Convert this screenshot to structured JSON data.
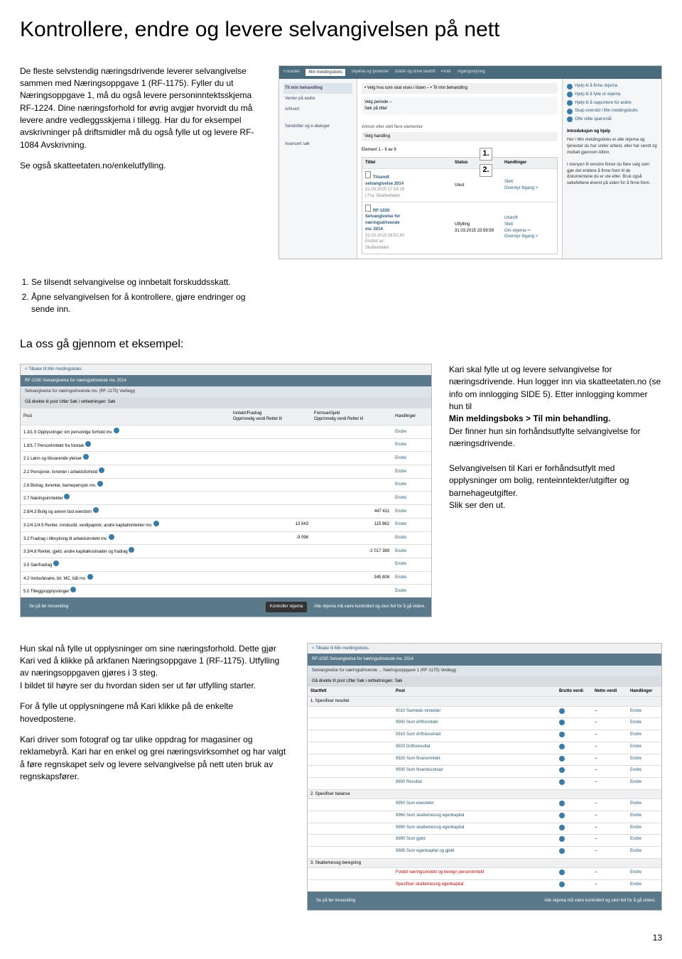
{
  "title": "Kontrollere, endre og levere selvangivelsen på nett",
  "intro": {
    "p1": "De fleste selvstendig næringsdrivende leverer selvangivelse sammen med Næringsoppgave 1 (RF-1175). Fyller du ut Næringsoppgave 1, må du også levere personinntektsskjema RF-1224. Dine næringsforhold for øvrig avgjør hvorvidt du må levere andre vedleggsskjema i tillegg. Har du for eksempel avskrivninger på driftsmidler må du også fylle ut og levere RF-1084 Avskrivning.",
    "p2": "Se også skatteetaten.no/enkelutfylling."
  },
  "steps": {
    "s1": "Se tilsendt selvangivelse og innbetalt forskuddsskatt.",
    "s2": "Åpne selvangivelsen for å kontrollere, gjøre endringer og sende inn."
  },
  "shot1": {
    "tabs": [
      "Forsiden",
      "Min meldingsboks",
      "Skjema og tjenester",
      "Starte og drive bedrift",
      "Profil",
      "Tilgangsstyring"
    ],
    "left": {
      "hdr": "Til min behandling",
      "items": [
        "Venter på andre",
        "Arkivert",
        "",
        "Søndotter og e-dialoger",
        "",
        "Avansert søk"
      ]
    },
    "midbar": "• Velg hva som skal vises i listen –  • Til min behandling",
    "mid_items": [
      "Velg periode –",
      "Søk på tittel"
    ],
    "mid_sec": "Arkivér eller slett flere elementer",
    "mid_sec2": "Velg handling",
    "list_hdr": "Element 1 - 9 av 9",
    "cols": [
      "Tittel",
      "Status",
      "Handlinger"
    ],
    "item1": {
      "title": "Tilsendt selvangivelse 2014",
      "sub": "31.03.2015 17:33:19 | Fra: Skatteetaten",
      "status": "Ulest",
      "action": "Slett\nOverstyr tilgang >"
    },
    "item2": {
      "title": "RF-1030 Selvangivelse for næringsdrivende mv. 2014",
      "sub": "31.03.2015 18:51:40 Endret av: Skatteetaten",
      "status": "Utfylling\n31.03.2015 23:59:59",
      "action": "Utskrift\nSlett\nOm skjema ⇨\nOverstyr tilgang >"
    },
    "help": [
      "Hjelp til å finne skjema",
      "Hjelp til å fylle ut skjema",
      "Hjelp til å rapportere for andre",
      "Skap oversikt i Min meldingsboks",
      "Ofte stilte spørsmål"
    ],
    "help_title": "Introduksjon og hjelp",
    "help_text": "Her i Min meldingsboks er alle skjema og tjenester du har under arbeid, eller har sendt og mottatt gjennom Altinn.\n\nI menyen til venstre finner du flere valg som gjør det enklere å finne frem til de dokumentene du er ute etter. Bruk også søkefeltene øverst på siden for å finne frem."
  },
  "example_hdr": "La oss gå gjennom et eksempel:",
  "shot2": {
    "back": "< Tilbake til Min meldingsboks",
    "title": "RF-1030 Selvangivelse for næringsdrivende mv. 2014",
    "tabs": "Selvangivelse for næringsdrivende mv. (RF-1175)  Vedlegg",
    "search": "Gå direkte til post            Utfør   Søk i rettledningen:            Søk",
    "cols": [
      "Post",
      "Inntekt/Fradrag\nOpprinnelig verdi   Rettet til",
      "Formue/Gjeld\nOpprinnelig verdi   Rettet til",
      "Handlinger"
    ],
    "rows": [
      {
        "p": "1.3/1.5 Opplysninger om personlige forhold mv.",
        "a": "Endre"
      },
      {
        "p": "1.6/1.7 Personinntekt fra foretak",
        "a": "Endre"
      },
      {
        "p": "2.1 Lønn og tilsvarende ytelser",
        "a": "Endre"
      },
      {
        "p": "2.2 Pensjoner, livrenter i arbeidsforhold",
        "a": "Endre"
      },
      {
        "p": "2.6 Bidrag, livrenter, barnepensjon mv.",
        "a": "Endre"
      },
      {
        "p": "2.7 Næringsinntekter",
        "a": "Endre"
      },
      {
        "p": "2.8/4.3 Bolig og annen fast eiendom",
        "v2": "447 411",
        "a": "Endre"
      },
      {
        "p": "3.1/4.1/4.5 Renter, innskudd, verdipapirer, andre kapitalinntekter mv.",
        "v1": "13 543",
        "v2": "115 862",
        "a": "Endre"
      },
      {
        "p": "3.2 Fradrag i tilknytning til arbeidsinntekt mv.",
        "v1": "-9 096",
        "a": "Endre"
      },
      {
        "p": "3.3/4.8 Renter, gjeld, andre kapitalkostnader og fradrag",
        "v2": "-2 017 389",
        "a": "Endre"
      },
      {
        "p": "3.5 Særfradrag",
        "a": "Endre"
      },
      {
        "p": "4.2 Innbo/løsøre, bil, MC, båt mv.",
        "v2": "345 808",
        "a": "Endre"
      },
      {
        "p": "5.0 Tilleggsopplysninger",
        "a": "Endre"
      }
    ],
    "btn1": "Se på før innsending",
    "btn2": "Kontroller skjema",
    "foot": "Alle skjema må være kontrollert og uten feil for å gå videre."
  },
  "example_text": {
    "p1a": "Kari skal fylle ut og levere selvangivelse for næringsdrivende. Hun logger inn via skatteetaten.no (se info om innlogging SIDE 5). Etter innlogging kommer hun til ",
    "p1b": "Min meldingsboks > Til min behandling.",
    "p1c": "Der finner hun sin forhåndsutfylte selvangivelse for næringsdrivende.",
    "p2": "Selvangivelsen til Kari er forhåndsutfylt med opplysninger om bolig, renteinntekter/utgifter og barnehageutgifter.",
    "p3": "Slik ser den ut."
  },
  "bottom": {
    "p1": "Hun skal nå fylle ut opplysninger om sine næringsforhold. Dette gjør Kari ved å klikke på arkfanen Næringsoppgave 1 (RF-1175). Utfylling av næringsoppgaven gjøres i 3 steg.",
    "p2": "I bildet til høyre ser du hvordan siden ser ut før utfylling starter.",
    "p3": "For å fylle ut opplysningene må Kari klikke på de enkelte hovedpostene.",
    "p4": "Kari driver som fotograf og tar ulike oppdrag for magasiner og reklamebyrå. Kari har en enkel og grei næringsvirksomhet og har valgt å føre regnskapet selv og levere selvangivelse på nett uten bruk av regnskapsfører."
  },
  "shot3": {
    "back": "< Tilbake til Min meldingsboks",
    "title": "RF-1030 Selvangivelse for næringsdrivende mv. 2014",
    "tabs": "Selvangivelse for næringsdrivende ...  Næringsoppgave 1 (RF-1175)  Vedlegg",
    "search": "Gå direkte til post            Utfør   Søk i rettledningen:            Søk",
    "cols": [
      "Startfelt",
      "Post",
      "Brutto verdi",
      "Netto verdi",
      "Handlinger"
    ],
    "group1": "1. Spesifiser resultat",
    "g1rows": [
      {
        "p": "9010 Samlede inntekter",
        "a": "Endre"
      },
      {
        "p": "9900 Sum driftsinntekt",
        "a": "Endre"
      },
      {
        "p": "0910 Sum driftskostnad",
        "a": "Endre"
      },
      {
        "p": "9920 Driftsresultat",
        "a": "Endre"
      },
      {
        "p": "9920 Sum finansinntekt",
        "a": "Endre"
      },
      {
        "p": "9930 Sum finanskostnad",
        "a": "Endre"
      },
      {
        "p": "9930 Resultat",
        "a": "Endre"
      }
    ],
    "group2": "2. Spesifiser balanse",
    "g2rows": [
      {
        "p": "9950 Sum eiendeler",
        "a": "Endre"
      },
      {
        "p": "9960 Sum skattemessig egenkapital",
        "a": "Endre"
      },
      {
        "p": "9990 Sum skattemessig egenkapital",
        "a": "Endre"
      },
      {
        "p": "9990 Sum gjeld",
        "a": "Endre"
      },
      {
        "p": "9995 Sum egenkapital og gjeld",
        "a": "Endre"
      }
    ],
    "group3": "3. Skattemessig beregning",
    "g3rows": [
      {
        "p": "Fordel næringsinntekt og beregn personinntekt",
        "a": "Endre"
      },
      {
        "p": "Spesifiser skattemessig egenkapital",
        "a": "Endre"
      }
    ],
    "btn": "Se på før innsending",
    "foot": "Alle skjema må være kontrollert og uten feil for å gå videre."
  },
  "pagenum": "13"
}
